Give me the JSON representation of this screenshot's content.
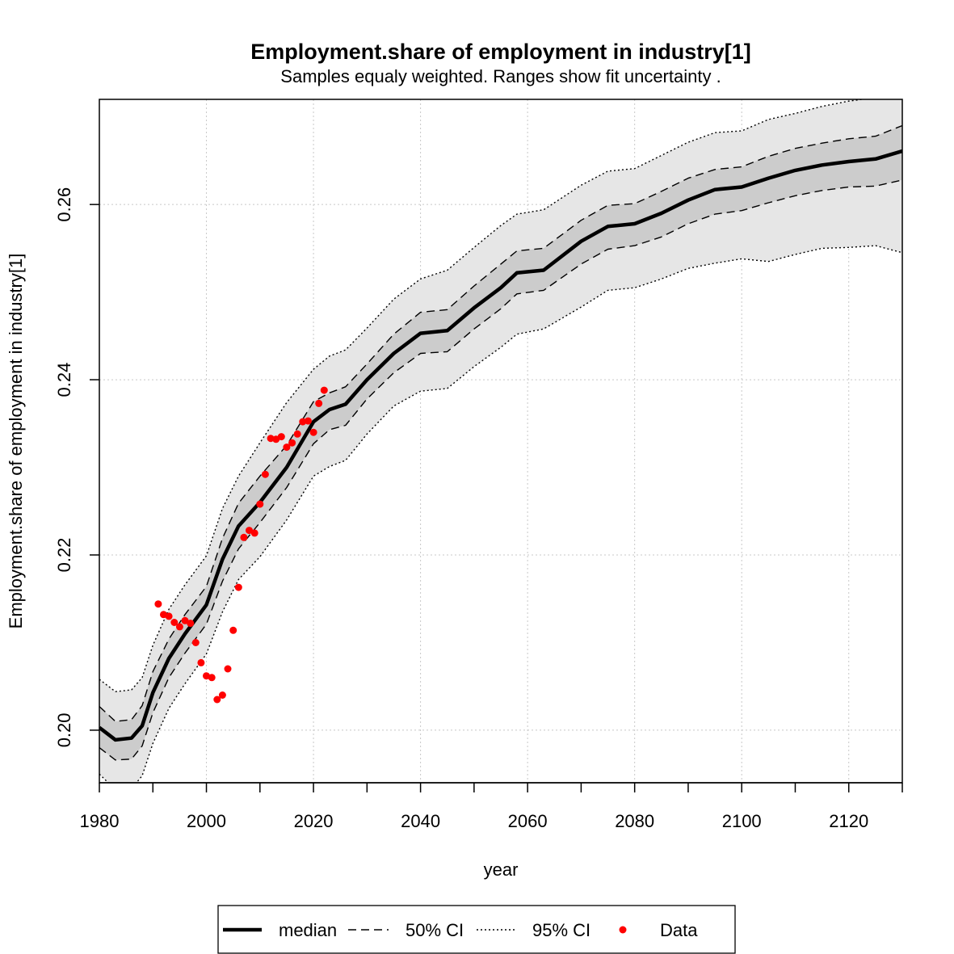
{
  "chart_data": {
    "type": "line",
    "title": "Employment.share of employment in industry[1]",
    "subtitle": "Samples equaly weighted. Ranges show  fit uncertainty .",
    "xlabel": "year",
    "ylabel": "Employment.share of employment in industry[1]",
    "xlim": [
      1980,
      2130
    ],
    "ylim": [
      0.194,
      0.272
    ],
    "x_ticks": [
      "1980",
      "2000",
      "2020",
      "2040",
      "2060",
      "2080",
      "2100",
      "2120"
    ],
    "y_ticks": [
      "0.20",
      "0.22",
      "0.24",
      "0.26"
    ],
    "grid": true,
    "legend_position": "bottom",
    "legend": {
      "median": "median",
      "ci50": "50% CI",
      "ci95": "95% CI",
      "data": "Data"
    },
    "colors": {
      "median": "#000000",
      "band95": "#e6e6e6",
      "band50": "#cccccc",
      "data": "#ff0000",
      "grid": "#c8c8c8"
    },
    "series": [
      {
        "name": "median",
        "x": [
          1980,
          1983,
          1986,
          1988,
          1990,
          1993,
          1996,
          2000,
          2003,
          2006,
          2010,
          2015,
          2020,
          2023,
          2026,
          2030,
          2035,
          2040,
          2045,
          2050,
          2055,
          2058,
          2063,
          2070,
          2075,
          2080,
          2085,
          2090,
          2095,
          2100,
          2105,
          2110,
          2115,
          2120,
          2125,
          2130
        ],
        "y": [
          0.2003,
          0.1989,
          0.1991,
          0.2005,
          0.2043,
          0.2082,
          0.211,
          0.2143,
          0.2195,
          0.2233,
          0.226,
          0.23,
          0.2352,
          0.2366,
          0.2372,
          0.24,
          0.243,
          0.2453,
          0.2456,
          0.2482,
          0.2505,
          0.2522,
          0.2525,
          0.2558,
          0.2575,
          0.2578,
          0.259,
          0.2605,
          0.2617,
          0.262,
          0.263,
          0.2639,
          0.2645,
          0.2649,
          0.2652,
          0.2661
        ]
      },
      {
        "name": "50% CI upper",
        "x": [
          1980,
          1983,
          1986,
          1988,
          1990,
          1993,
          1996,
          2000,
          2003,
          2006,
          2010,
          2015,
          2020,
          2023,
          2026,
          2030,
          2035,
          2040,
          2045,
          2050,
          2055,
          2058,
          2063,
          2070,
          2075,
          2080,
          2085,
          2090,
          2095,
          2100,
          2105,
          2110,
          2115,
          2120,
          2125,
          2130
        ],
        "y": [
          0.2027,
          0.201,
          0.2012,
          0.2028,
          0.2067,
          0.2104,
          0.2132,
          0.2164,
          0.2219,
          0.2259,
          0.229,
          0.2325,
          0.2375,
          0.2385,
          0.2392,
          0.2418,
          0.2452,
          0.2477,
          0.248,
          0.2507,
          0.2532,
          0.2547,
          0.255,
          0.2582,
          0.2599,
          0.2601,
          0.2615,
          0.263,
          0.264,
          0.2643,
          0.2655,
          0.2664,
          0.267,
          0.2675,
          0.2678,
          0.269
        ]
      },
      {
        "name": "50% CI lower",
        "x": [
          1980,
          1983,
          1986,
          1988,
          1990,
          1993,
          1996,
          2000,
          2003,
          2006,
          2010,
          2015,
          2020,
          2023,
          2026,
          2030,
          2035,
          2040,
          2045,
          2050,
          2055,
          2058,
          2063,
          2070,
          2075,
          2080,
          2085,
          2090,
          2095,
          2100,
          2105,
          2110,
          2115,
          2120,
          2125,
          2130
        ],
        "y": [
          0.198,
          0.1966,
          0.1967,
          0.1982,
          0.202,
          0.206,
          0.2088,
          0.2121,
          0.217,
          0.2207,
          0.2237,
          0.2277,
          0.2327,
          0.2343,
          0.2348,
          0.2378,
          0.2408,
          0.243,
          0.2432,
          0.2458,
          0.2481,
          0.2498,
          0.2502,
          0.2532,
          0.2549,
          0.2553,
          0.2563,
          0.2578,
          0.2589,
          0.2593,
          0.2602,
          0.261,
          0.2616,
          0.262,
          0.2621,
          0.2628
        ]
      },
      {
        "name": "95% CI upper",
        "x": [
          1980,
          1983,
          1986,
          1988,
          1990,
          1993,
          1996,
          2000,
          2003,
          2006,
          2010,
          2015,
          2020,
          2023,
          2026,
          2030,
          2035,
          2040,
          2045,
          2050,
          2055,
          2058,
          2063,
          2070,
          2075,
          2080,
          2085,
          2090,
          2095,
          2100,
          2105,
          2110,
          2115,
          2120,
          2125,
          2130
        ],
        "y": [
          0.2058,
          0.2044,
          0.2046,
          0.206,
          0.2097,
          0.2138,
          0.2166,
          0.2199,
          0.2253,
          0.229,
          0.2328,
          0.2374,
          0.2412,
          0.2427,
          0.2434,
          0.2459,
          0.2492,
          0.2515,
          0.2525,
          0.2551,
          0.2576,
          0.2589,
          0.2594,
          0.2622,
          0.2638,
          0.2641,
          0.2656,
          0.2671,
          0.2682,
          0.2684,
          0.2697,
          0.2704,
          0.2712,
          0.2718,
          0.2722,
          0.2735
        ]
      },
      {
        "name": "95% CI lower",
        "x": [
          1980,
          1983,
          1986,
          1988,
          1990,
          1993,
          1996,
          2000,
          2003,
          2006,
          2010,
          2015,
          2020,
          2023,
          2026,
          2030,
          2035,
          2040,
          2045,
          2050,
          2055,
          2058,
          2063,
          2070,
          2075,
          2080,
          2085,
          2090,
          2095,
          2100,
          2105,
          2110,
          2115,
          2120,
          2125,
          2130
        ],
        "y": [
          0.195,
          0.1932,
          0.1933,
          0.1948,
          0.1985,
          0.2025,
          0.2053,
          0.2087,
          0.2135,
          0.2172,
          0.2198,
          0.224,
          0.229,
          0.2301,
          0.2308,
          0.2338,
          0.237,
          0.2387,
          0.239,
          0.2415,
          0.2437,
          0.2452,
          0.2458,
          0.2483,
          0.2502,
          0.2505,
          0.2515,
          0.2527,
          0.2533,
          0.2538,
          0.2535,
          0.2543,
          0.255,
          0.2551,
          0.2553,
          0.2545
        ]
      },
      {
        "name": "Data",
        "x": [
          1991,
          1992,
          1993,
          1994,
          1995,
          1996,
          1997,
          1998,
          1999,
          2000,
          2001,
          2002,
          2003,
          2004,
          2005,
          2006,
          2007,
          2008,
          2009,
          2010,
          2011,
          2012,
          2013,
          2014,
          2015,
          2016,
          2017,
          2018,
          2019,
          2020,
          2021,
          2022
        ],
        "y": [
          0.2144,
          0.2132,
          0.213,
          0.2123,
          0.2118,
          0.2125,
          0.2122,
          0.21,
          0.2077,
          0.2062,
          0.206,
          0.2035,
          0.204,
          0.207,
          0.2114,
          0.2163,
          0.222,
          0.2228,
          0.2225,
          0.2258,
          0.2292,
          0.2333,
          0.2332,
          0.2335,
          0.2323,
          0.2328,
          0.2338,
          0.2352,
          0.2353,
          0.234,
          0.2373,
          0.2388
        ]
      }
    ]
  }
}
